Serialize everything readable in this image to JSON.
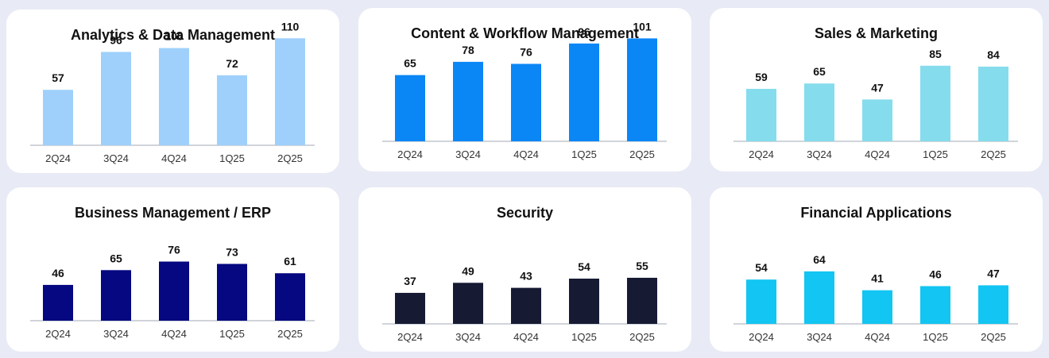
{
  "chart_data": [
    {
      "type": "bar",
      "title": "Analytics & Data Management",
      "categories": [
        "2Q24",
        "3Q24",
        "4Q24",
        "1Q25",
        "2Q25"
      ],
      "values": [
        57,
        96,
        100,
        72,
        110
      ],
      "color": "#9fd0fb",
      "ylim": [
        0,
        120
      ]
    },
    {
      "type": "bar",
      "title": "Content & Workflow Management",
      "categories": [
        "2Q24",
        "3Q24",
        "4Q24",
        "1Q25",
        "2Q25"
      ],
      "values": [
        65,
        78,
        76,
        96,
        101
      ],
      "color": "#0b86f5",
      "ylim": [
        0,
        120
      ]
    },
    {
      "type": "bar",
      "title": "Sales & Marketing",
      "categories": [
        "2Q24",
        "3Q24",
        "4Q24",
        "1Q25",
        "2Q25"
      ],
      "values": [
        59,
        65,
        47,
        85,
        84
      ],
      "color": "#85dced",
      "ylim": [
        0,
        100
      ]
    },
    {
      "type": "bar",
      "title": "Business Management / ERP",
      "categories": [
        "2Q24",
        "3Q24",
        "4Q24",
        "1Q25",
        "2Q25"
      ],
      "values": [
        46,
        65,
        76,
        73,
        61
      ],
      "color": "#050880",
      "ylim": [
        0,
        100
      ]
    },
    {
      "type": "bar",
      "title": "Security",
      "categories": [
        "2Q24",
        "3Q24",
        "4Q24",
        "1Q25",
        "2Q25"
      ],
      "values": [
        37,
        49,
        43,
        54,
        55
      ],
      "color": "#161a33",
      "ylim": [
        0,
        90
      ]
    },
    {
      "type": "bar",
      "title": "Financial Applications",
      "categories": [
        "2Q24",
        "3Q24",
        "4Q24",
        "1Q25",
        "2Q25"
      ],
      "values": [
        54,
        64,
        41,
        46,
        47
      ],
      "color": "#12c5f2",
      "ylim": [
        0,
        90
      ]
    }
  ]
}
